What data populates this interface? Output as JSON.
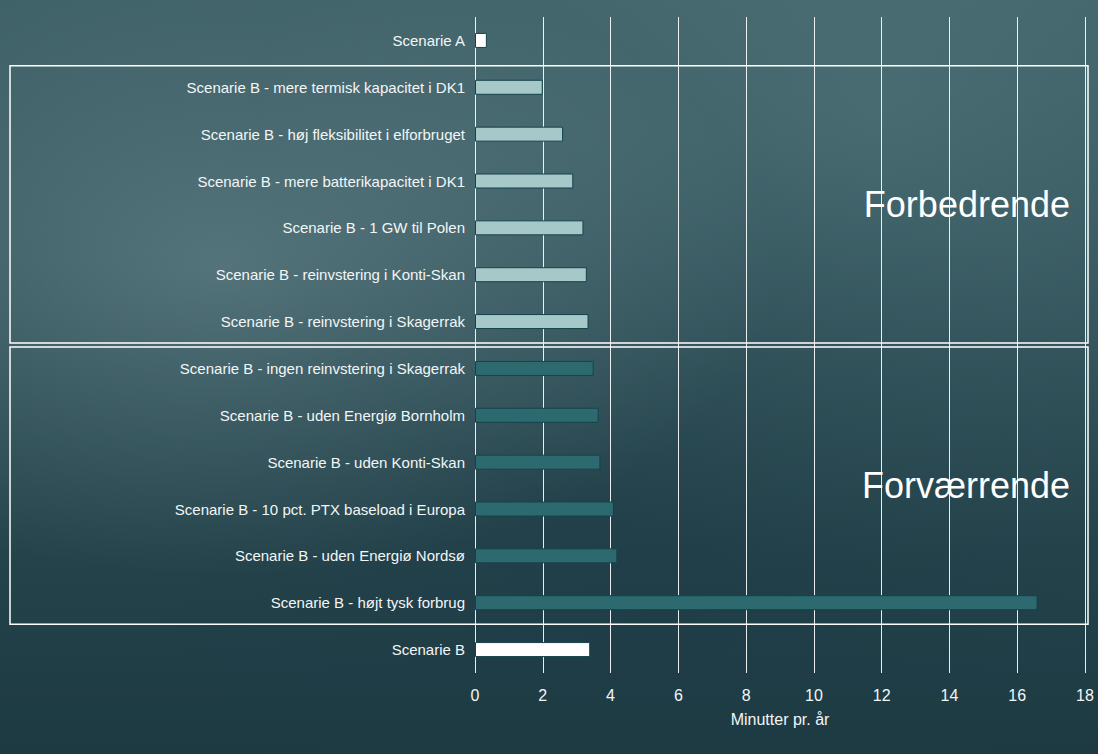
{
  "chart_data": {
    "type": "bar",
    "orientation": "horizontal",
    "categories": [
      "Scenarie A",
      "Scenarie B - mere termisk kapacitet i DK1",
      "Scenarie B - høj fleksibilitet i elforbruget",
      "Scenarie B - mere batterikapacitet i DK1",
      "Scenarie B - 1 GW til Polen",
      "Scenarie B - reinvstering i Konti-Skan",
      "Scenarie B - reinvstering i Skagerrak",
      "Scenarie B - ingen reinvstering i Skagerrak",
      "Scenarie B - uden Energiø Bornholm",
      "Scenarie B - uden Konti-Skan",
      "Scenarie B - 10 pct. PTX baseload i Europa",
      "Scenarie B - uden Energiø Nordsø",
      "Scenarie B - højt tysk forbrug",
      "Scenarie B"
    ],
    "values": [
      0.35,
      2.0,
      2.6,
      2.9,
      3.2,
      3.3,
      3.35,
      3.5,
      3.65,
      3.7,
      4.1,
      4.2,
      16.6,
      3.4
    ],
    "colors": [
      "#ffffff",
      "#a6c8c8",
      "#a6c8c8",
      "#a6c8c8",
      "#a6c8c8",
      "#a6c8c8",
      "#a6c8c8",
      "#2c6a70",
      "#2c6a70",
      "#2c6a70",
      "#2c6a70",
      "#2c6a70",
      "#2c6a70",
      "#ffffff"
    ],
    "xlabel": "Minutter pr. år",
    "xlim": [
      0,
      18
    ],
    "xticks": [
      0,
      2,
      4,
      6,
      8,
      10,
      12,
      14,
      16,
      18
    ],
    "grid": true,
    "data_labels": false,
    "annotations": [
      {
        "text": "Forbedrende",
        "first": "Scenarie B - mere termisk kapacitet i DK1",
        "last": "Scenarie B - reinvstering i Skagerrak"
      },
      {
        "text": "Forværrende",
        "first": "Scenarie B - ingen reinvstering i Skagerrak",
        "last": "Scenarie B - højt tysk forbrug"
      }
    ]
  }
}
